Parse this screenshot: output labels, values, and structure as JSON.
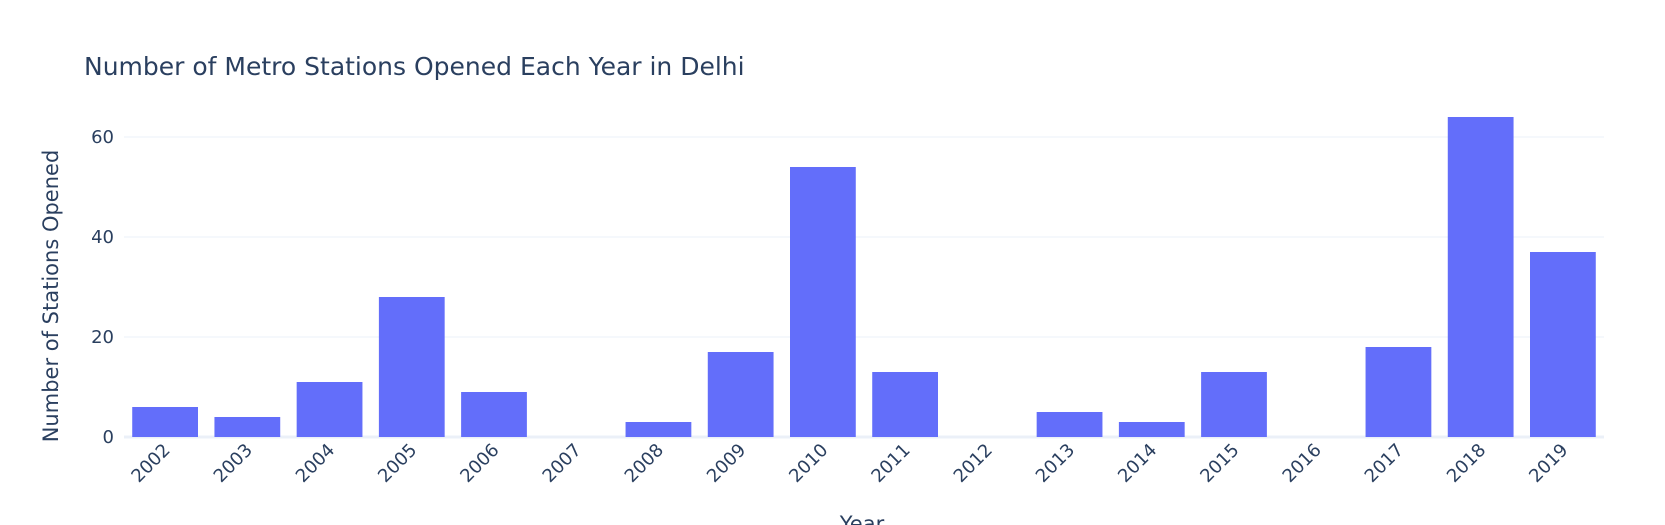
{
  "chart_data": {
    "type": "bar",
    "title": "Number of Metro Stations Opened Each Year in Delhi",
    "xlabel": "Year",
    "ylabel": "Number of Stations Opened",
    "categories": [
      "2002",
      "2003",
      "2004",
      "2005",
      "2006",
      "2007",
      "2008",
      "2009",
      "2010",
      "2011",
      "2012",
      "2013",
      "2014",
      "2015",
      "2016",
      "2017",
      "2018",
      "2019"
    ],
    "values": [
      6,
      4,
      11,
      28,
      9,
      0,
      3,
      17,
      54,
      13,
      0,
      5,
      3,
      13,
      0,
      18,
      64,
      37
    ],
    "yticks": [
      "0",
      "20",
      "40",
      "60"
    ],
    "ylim": [
      0,
      67.4
    ],
    "color": "#636efa",
    "grid": true,
    "legend": "none"
  }
}
